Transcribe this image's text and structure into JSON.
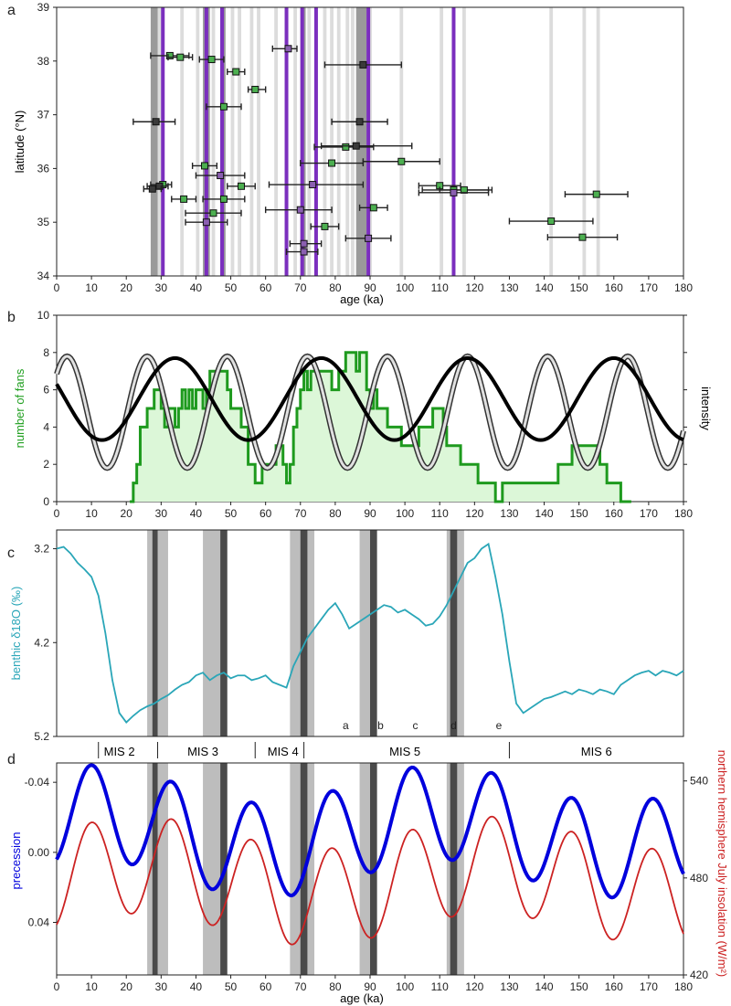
{
  "chart_data": [
    {
      "panel": "a",
      "type": "scatter",
      "xlabel": "age (ka)",
      "ylabel": "latitude (°N)",
      "xlim": [
        0,
        180
      ],
      "ylim": [
        34,
        39
      ],
      "xticks": [
        "0",
        "10",
        "20",
        "30",
        "40",
        "50",
        "60",
        "70",
        "80",
        "90",
        "100",
        "110",
        "120",
        "130",
        "140",
        "150",
        "160",
        "170",
        "180"
      ],
      "yticks": [
        "34",
        "35",
        "36",
        "37",
        "38",
        "39"
      ],
      "purple_lines": [
        30.5,
        43,
        47.5,
        66,
        70.5,
        74.5,
        89.5,
        114
      ],
      "dark_gray_bands": [
        [
          27,
          29
        ],
        [
          42,
          44
        ],
        [
          47,
          48.5
        ],
        [
          70,
          71.5
        ],
        [
          86,
          89
        ]
      ],
      "light_gray_bands": [
        [
          29,
          30
        ],
        [
          35.5,
          36.5
        ],
        [
          40,
          41
        ],
        [
          44.5,
          45.5
        ],
        [
          50,
          51
        ],
        [
          52,
          53
        ],
        [
          55.5,
          56.5
        ],
        [
          57.5,
          58.5
        ],
        [
          62.5,
          63.5
        ],
        [
          68,
          69
        ],
        [
          72,
          73
        ],
        [
          76.5,
          77.5
        ],
        [
          78.5,
          79.5
        ],
        [
          80.5,
          81.5
        ],
        [
          83,
          84
        ],
        [
          84.5,
          85.5
        ],
        [
          89.5,
          90.5
        ],
        [
          98.5,
          99.5
        ],
        [
          110,
          111
        ],
        [
          116.5,
          117.5
        ],
        [
          141.5,
          142.5
        ],
        [
          151,
          152
        ],
        [
          155,
          156
        ]
      ],
      "points": [
        {
          "age": 32.5,
          "lat": 38.1,
          "err": [
            27,
            38
          ],
          "kind": "green"
        },
        {
          "age": 35.5,
          "lat": 38.07,
          "err": [
            32,
            39
          ],
          "kind": "green"
        },
        {
          "age": 44.5,
          "lat": 38.03,
          "err": [
            41,
            48
          ],
          "kind": "green"
        },
        {
          "age": 51.5,
          "lat": 37.8,
          "err": [
            49,
            54
          ],
          "kind": "green"
        },
        {
          "age": 57,
          "lat": 37.47,
          "err": [
            55,
            60
          ],
          "kind": "green"
        },
        {
          "age": 48,
          "lat": 37.15,
          "err": [
            43,
            53
          ],
          "kind": "green"
        },
        {
          "age": 28.5,
          "lat": 36.87,
          "err": [
            22,
            34
          ],
          "kind": "dark"
        },
        {
          "age": 66.5,
          "lat": 38.23,
          "err": [
            62,
            69
          ],
          "kind": "purple"
        },
        {
          "age": 88,
          "lat": 37.93,
          "err": [
            77,
            99
          ],
          "kind": "dark"
        },
        {
          "age": 87,
          "lat": 36.87,
          "err": [
            79,
            95
          ],
          "kind": "dark"
        },
        {
          "age": 83,
          "lat": 36.4,
          "err": [
            74,
            91
          ],
          "kind": "green"
        },
        {
          "age": 86,
          "lat": 36.42,
          "err": [
            76,
            102
          ],
          "kind": "dark"
        },
        {
          "age": 79,
          "lat": 36.1,
          "err": [
            70,
            88
          ],
          "kind": "green"
        },
        {
          "age": 99,
          "lat": 36.13,
          "err": [
            88,
            110
          ],
          "kind": "green"
        },
        {
          "age": 42.5,
          "lat": 36.05,
          "err": [
            39,
            46
          ],
          "kind": "green"
        },
        {
          "age": 47,
          "lat": 35.87,
          "err": [
            40,
            54
          ],
          "kind": "purple"
        },
        {
          "age": 53,
          "lat": 35.67,
          "err": [
            49,
            57
          ],
          "kind": "green"
        },
        {
          "age": 30.5,
          "lat": 35.7,
          "err": [
            27,
            33
          ],
          "kind": "green"
        },
        {
          "age": 29.5,
          "lat": 35.67,
          "err": [
            26,
            32
          ],
          "kind": "dark"
        },
        {
          "age": 27.5,
          "lat": 35.62,
          "err": [
            25,
            30
          ],
          "kind": "dark"
        },
        {
          "age": 36.5,
          "lat": 35.43,
          "err": [
            33,
            40
          ],
          "kind": "green"
        },
        {
          "age": 48,
          "lat": 35.43,
          "err": [
            42,
            54
          ],
          "kind": "green"
        },
        {
          "age": 73.5,
          "lat": 35.7,
          "err": [
            61,
            88
          ],
          "kind": "purple"
        },
        {
          "age": 110,
          "lat": 35.68,
          "err": [
            104,
            116
          ],
          "kind": "green"
        },
        {
          "age": 114,
          "lat": 35.6,
          "err": [
            105,
            124
          ],
          "kind": "green"
        },
        {
          "age": 117,
          "lat": 35.6,
          "err": [
            110,
            125
          ],
          "kind": "green"
        },
        {
          "age": 114,
          "lat": 35.55,
          "err": [
            104,
            124
          ],
          "kind": "purple"
        },
        {
          "age": 155,
          "lat": 35.52,
          "err": [
            146,
            164
          ],
          "kind": "green"
        },
        {
          "age": 45,
          "lat": 35.17,
          "err": [
            37,
            53
          ],
          "kind": "green"
        },
        {
          "age": 43,
          "lat": 35.0,
          "err": [
            37,
            49
          ],
          "kind": "purple"
        },
        {
          "age": 70,
          "lat": 35.23,
          "err": [
            60,
            79
          ],
          "kind": "purple"
        },
        {
          "age": 91,
          "lat": 35.27,
          "err": [
            87,
            95
          ],
          "kind": "green"
        },
        {
          "age": 77,
          "lat": 34.92,
          "err": [
            73,
            81
          ],
          "kind": "green"
        },
        {
          "age": 142,
          "lat": 35.02,
          "err": [
            130,
            154
          ],
          "kind": "green"
        },
        {
          "age": 151,
          "lat": 34.72,
          "err": [
            141,
            161
          ],
          "kind": "green"
        },
        {
          "age": 89.5,
          "lat": 34.7,
          "err": [
            83,
            96
          ],
          "kind": "purple"
        },
        {
          "age": 71,
          "lat": 34.6,
          "err": [
            67,
            76
          ],
          "kind": "purple"
        },
        {
          "age": 71,
          "lat": 34.45,
          "err": [
            66,
            75
          ],
          "kind": "purple"
        }
      ]
    },
    {
      "panel": "b",
      "type": "area",
      "xlabel": "",
      "ylabel": "number of fans",
      "ylabel_right": "intensity",
      "xlim": [
        0,
        180
      ],
      "ylim": [
        0,
        10
      ],
      "xticks": [
        "0",
        "10",
        "20",
        "30",
        "40",
        "50",
        "60",
        "70",
        "80",
        "90",
        "100",
        "110",
        "120",
        "130",
        "140",
        "150",
        "160",
        "170",
        "180"
      ],
      "yticks": [
        "0",
        "2",
        "4",
        "6",
        "8",
        "10"
      ],
      "fans_step": [
        [
          21,
          0
        ],
        [
          22,
          1
        ],
        [
          23,
          2
        ],
        [
          24,
          4
        ],
        [
          26,
          5
        ],
        [
          28,
          6
        ],
        [
          30,
          5
        ],
        [
          31,
          4
        ],
        [
          32,
          5
        ],
        [
          34,
          4
        ],
        [
          35,
          5
        ],
        [
          36,
          6
        ],
        [
          37,
          5
        ],
        [
          38,
          6
        ],
        [
          39,
          5
        ],
        [
          40,
          6
        ],
        [
          41,
          6
        ],
        [
          42,
          5
        ],
        [
          43,
          6
        ],
        [
          44,
          7
        ],
        [
          49,
          6
        ],
        [
          50,
          5
        ],
        [
          53,
          4
        ],
        [
          55,
          2
        ],
        [
          57,
          1
        ],
        [
          59,
          2
        ],
        [
          63,
          3
        ],
        [
          65,
          2
        ],
        [
          66,
          1
        ],
        [
          67,
          2
        ],
        [
          68,
          4
        ],
        [
          69,
          5
        ],
        [
          70,
          6
        ],
        [
          71,
          7
        ],
        [
          72,
          6
        ],
        [
          73,
          7
        ],
        [
          79,
          6
        ],
        [
          81,
          7
        ],
        [
          83,
          8
        ],
        [
          86,
          7
        ],
        [
          87,
          8
        ],
        [
          89,
          6
        ],
        [
          90,
          5
        ],
        [
          91,
          6
        ],
        [
          92,
          5
        ],
        [
          95,
          4
        ],
        [
          99,
          3
        ],
        [
          104,
          4
        ],
        [
          108,
          5
        ],
        [
          111,
          4
        ],
        [
          112,
          3
        ],
        [
          116,
          2
        ],
        [
          121,
          1
        ],
        [
          126,
          0
        ],
        [
          128,
          1
        ],
        [
          144,
          2
        ],
        [
          148,
          3
        ],
        [
          156,
          2
        ],
        [
          158,
          1
        ],
        [
          162,
          0
        ],
        [
          165,
          0
        ]
      ],
      "intensity_black": {
        "mean": 5.5,
        "amp": 2.2,
        "period": 42,
        "phase": 76
      },
      "intensity_gray": {
        "mean": 4.8,
        "amp": 3.0,
        "period": 23,
        "phase": 72
      }
    },
    {
      "panel": "c",
      "type": "line",
      "xlabel": "",
      "ylabel": "benthic δ18O (‰)",
      "xlim": [
        0,
        180
      ],
      "ylim": [
        5.2,
        3.0
      ],
      "yticks": [
        "3.2",
        "4.2",
        "5.2"
      ],
      "series": [
        {
          "x": [
            0,
            2,
            4,
            6,
            8,
            10,
            12,
            14,
            16,
            18,
            20,
            22,
            24,
            26,
            28,
            30,
            32,
            34,
            36,
            38,
            40,
            42,
            44,
            46,
            48,
            50,
            52,
            54,
            56,
            58,
            60,
            62,
            64,
            66,
            68,
            70,
            72,
            74,
            76,
            78,
            80,
            82,
            84,
            86,
            88,
            90,
            92,
            94,
            96,
            98,
            100,
            102,
            104,
            106,
            108,
            110,
            112,
            114,
            116,
            118,
            120,
            122,
            124,
            126,
            128,
            130,
            132,
            134,
            136,
            138,
            140,
            142,
            144,
            146,
            148,
            150,
            152,
            154,
            156,
            158,
            160,
            162,
            164,
            166,
            168,
            170,
            172,
            174,
            176,
            178,
            180
          ],
          "y": [
            3.2,
            3.18,
            3.25,
            3.35,
            3.42,
            3.5,
            3.7,
            4.1,
            4.6,
            4.95,
            5.05,
            4.98,
            4.92,
            4.88,
            4.85,
            4.8,
            4.76,
            4.7,
            4.65,
            4.62,
            4.55,
            4.52,
            4.6,
            4.55,
            4.52,
            4.58,
            4.55,
            4.55,
            4.6,
            4.58,
            4.55,
            4.62,
            4.65,
            4.68,
            4.45,
            4.3,
            4.15,
            4.05,
            3.95,
            3.85,
            3.78,
            3.9,
            4.05,
            4.0,
            3.95,
            3.9,
            3.85,
            3.8,
            3.82,
            3.88,
            3.85,
            3.9,
            3.95,
            4.02,
            4.0,
            3.92,
            3.8,
            3.65,
            3.5,
            3.35,
            3.3,
            3.2,
            3.15,
            3.5,
            3.9,
            4.4,
            4.85,
            4.95,
            4.9,
            4.85,
            4.8,
            4.78,
            4.75,
            4.72,
            4.75,
            4.7,
            4.72,
            4.75,
            4.7,
            4.72,
            4.75,
            4.65,
            4.6,
            4.55,
            4.52,
            4.5,
            4.55,
            4.5,
            4.52,
            4.55,
            4.5
          ]
        }
      ],
      "annotations": [
        {
          "label": "a",
          "x": 83
        },
        {
          "label": "b",
          "x": 93
        },
        {
          "label": "c",
          "x": 103
        },
        {
          "label": "d",
          "x": 114
        },
        {
          "label": "e",
          "x": 127
        }
      ]
    },
    {
      "panel": "d",
      "type": "line",
      "xlabel": "age (ka)",
      "ylabel": "precession",
      "ylabel_right": "northern hemisphere July insolation (W/m²)",
      "xlim": [
        0,
        180
      ],
      "ylim_left": [
        0.07,
        -0.05
      ],
      "ylim_right": [
        420,
        550
      ],
      "xticks": [
        "0",
        "10",
        "20",
        "30",
        "40",
        "50",
        "60",
        "70",
        "80",
        "90",
        "100",
        "110",
        "120",
        "130",
        "140",
        "150",
        "160",
        "170",
        "180"
      ],
      "yticks_left": [
        "-0.04",
        "0.00",
        "0.04"
      ],
      "yticks_right": [
        "420",
        "480",
        "540"
      ],
      "mis_labels": [
        {
          "label": "MIS 2",
          "x": 18
        },
        {
          "label": "MIS 3",
          "x": 42
        },
        {
          "label": "MIS 4",
          "x": 65
        },
        {
          "label": "MIS 5",
          "x": 100
        },
        {
          "label": "MIS 6",
          "x": 155
        }
      ],
      "mis_boundaries": [
        12,
        29,
        57,
        71,
        130
      ],
      "precession_color": "#0000dd",
      "insolation_color": "#cc2222"
    }
  ],
  "shared_bands_cd": {
    "light": [
      [
        26,
        32
      ],
      [
        42,
        48
      ],
      [
        67,
        74
      ],
      [
        87,
        91
      ],
      [
        112,
        117
      ]
    ],
    "dark": [
      [
        27.5,
        29
      ],
      [
        47,
        49
      ],
      [
        70,
        72
      ],
      [
        90,
        92
      ],
      [
        113,
        115
      ]
    ]
  },
  "panel_labels": [
    "a",
    "b",
    "c",
    "d"
  ],
  "colors": {
    "purple": "#7b2fbe",
    "green_marker": "#4caf50",
    "dark_marker": "#2a2a2a",
    "fans_line": "#1e9a1e",
    "fans_fill": "#dcf7d8",
    "benthic": "#2aa6b8",
    "band_dark": "#555555",
    "band_light": "#bbbbbb"
  }
}
